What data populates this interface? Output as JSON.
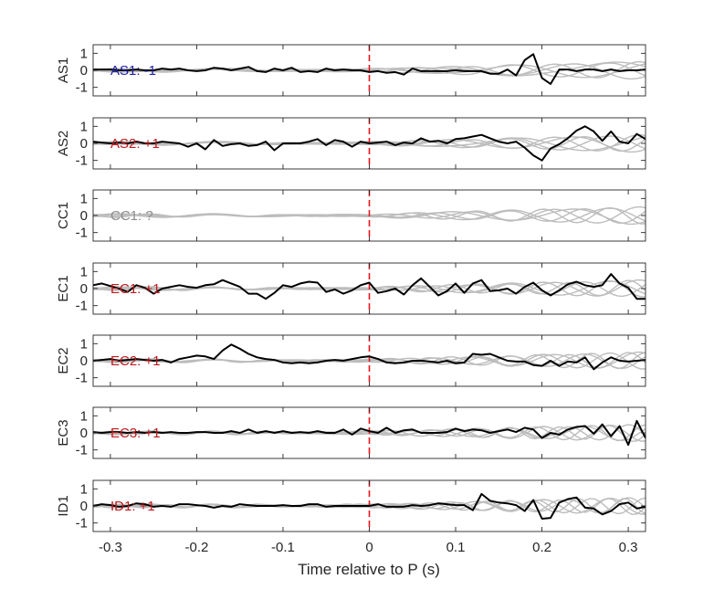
{
  "colors": {
    "axis": "#262626",
    "main_trace": "#000000",
    "grey_trace": "#bdbdbd",
    "p_marker": "#e8141a",
    "polarity_negative": "#1f1fa8",
    "polarity_positive": "#c0191d",
    "polarity_unknown": "#8c8c8c"
  },
  "chart_data": {
    "type": "line",
    "xlabel": "Time relative to P (s)",
    "xlim": [
      -0.32,
      0.32
    ],
    "xticks": [
      -0.3,
      -0.2,
      -0.1,
      0,
      0.1,
      0.2,
      0.3
    ],
    "xtick_labels": [
      "-0.3",
      "-0.2",
      "-0.1",
      "0",
      "0.1",
      "0.2",
      "0.3"
    ],
    "ylim": [
      -1.5,
      1.5
    ],
    "yticks": [
      -1,
      0,
      1
    ],
    "ytick_labels": [
      "-1",
      "0",
      "1"
    ],
    "p_arrival_x": 0,
    "time_step": 0.01,
    "panels": [
      {
        "ylabel": "AS1",
        "annotation": "AS1: -1",
        "polarity": "negative",
        "trace": [
          0.05,
          0.05,
          0.05,
          0,
          0,
          0.05,
          0,
          0,
          0.1,
          0.05,
          0.1,
          0,
          -0.05,
          0,
          0.15,
          0.1,
          0,
          0.1,
          0.2,
          -0.05,
          -0.1,
          0.1,
          0,
          0.15,
          -0.1,
          -0.05,
          -0.1,
          0.1,
          0,
          0.05,
          0,
          0,
          -0.1,
          -0.05,
          -0.15,
          -0.1,
          -0.25,
          0.1,
          -0.05,
          -0.05,
          -0.05,
          -0.05,
          0,
          -0.05,
          -0.05,
          -0.05,
          -0.2,
          -0.2,
          0.05,
          -0.3,
          0.6,
          0.95,
          -0.45,
          -0.8,
          0.05,
          0.05,
          -0.05,
          0.05,
          0.05,
          -0.05,
          0.05,
          -0.05,
          0,
          0,
          0.05,
          0.2,
          -0.1,
          -0.15,
          -0.05,
          0,
          0,
          -0.05,
          0.15,
          0.05,
          0,
          0,
          0,
          0.05,
          0.05,
          0,
          0,
          0.05,
          -0.1,
          -0.15,
          -0.05,
          0,
          0,
          0.1,
          0.05,
          -0.1,
          0.05,
          0,
          0.05,
          0.1,
          0.2,
          0.1,
          0.15,
          -0.05,
          0.15,
          0.25,
          0.2,
          0.1,
          -0.4
        ]
      },
      {
        "ylabel": "AS2",
        "annotation": "AS2: +1",
        "polarity": "positive",
        "trace": [
          0.1,
          0.05,
          0,
          0.05,
          0,
          0.1,
          0,
          0,
          0.1,
          0.05,
          0,
          -0.2,
          0,
          -0.35,
          0.2,
          -0.15,
          -0.05,
          0,
          -0.15,
          -0.1,
          0.1,
          -0.4,
          0,
          0,
          0,
          0.1,
          0.25,
          -0.1,
          0.2,
          0.1,
          -0.2,
          0.1,
          0,
          0.05,
          0.1,
          -0.1,
          0.05,
          0,
          0.3,
          0.1,
          0.15,
          0,
          0.25,
          0.3,
          0.4,
          0.5,
          0.3,
          0.1,
          0,
          0.1,
          -0.25,
          -0.7,
          -1.0,
          -0.3,
          -0.05,
          0.3,
          0.75,
          1.0,
          0.7,
          0.15,
          0.7,
          0.1,
          0,
          0.55,
          0.25,
          0.1,
          -0.05,
          -0.5,
          -0.6,
          -0.55,
          -0.05,
          -0.6,
          -0.5,
          -0.15,
          -0.05,
          0.05,
          0.05,
          0.55,
          0.5,
          0.2,
          0.1,
          0.05,
          -0.15,
          0,
          0.2,
          0.1,
          0.15,
          0.3,
          0.2,
          0.45,
          0.6,
          0.9,
          0.5,
          0.2,
          -0.1,
          0.35,
          0.1,
          0.3,
          0.15,
          0.1,
          -0.1,
          0.1,
          0.35
        ]
      },
      {
        "ylabel": "CC1",
        "annotation": "CC1: ?",
        "polarity": "unknown",
        "trace": []
      },
      {
        "ylabel": "EC1",
        "annotation": "EC1: +1",
        "polarity": "positive",
        "trace": [
          0.2,
          0.3,
          0.15,
          0,
          -0.2,
          0.2,
          0.05,
          -0.3,
          0,
          0.1,
          0.2,
          0.1,
          0.05,
          0.2,
          0.25,
          0.5,
          0.3,
          0.1,
          -0.3,
          -0.3,
          -0.6,
          -0.25,
          0.2,
          0.1,
          0.3,
          0.4,
          0.35,
          -0.2,
          -0.05,
          -0.3,
          -0.1,
          0.2,
          0.35,
          -0.25,
          -0.15,
          0,
          -0.35,
          0.2,
          0.6,
          0.1,
          -0.4,
          -0.15,
          0.3,
          -0.25,
          0.3,
          0.5,
          -0.15,
          -0.1,
          0,
          -0.3,
          0.1,
          0.35,
          -0.1,
          -0.4,
          -0.1,
          0.25,
          0.4,
          0.2,
          0.1,
          0.2,
          0.85,
          0.3,
          0.05,
          -0.6,
          -0.6,
          -0.35,
          -0.55,
          -0.4,
          0.75,
          0.2,
          -0.85,
          -0.95,
          0.05,
          0.55,
          0.35,
          0.55,
          -0.1,
          -0.1,
          0.8,
          0.15,
          0.9,
          0.05,
          0.1,
          -0.05,
          -0.1,
          0.05,
          -0.25,
          0.2,
          0.2,
          -0.05,
          0,
          0.25,
          0.1,
          0.45,
          0.2,
          -0.1,
          -0.05,
          0.35,
          0.5,
          -0.05,
          -0.35,
          -0.2,
          0.5,
          -0.1,
          -0.1,
          0.1,
          0,
          0.1,
          0.55,
          0.05,
          -0.05,
          0.3,
          0.1,
          -0.25,
          0.3,
          0.1,
          0.1
        ]
      },
      {
        "ylabel": "EC2",
        "annotation": "EC2: +1",
        "polarity": "positive",
        "trace": [
          0,
          0.05,
          0.1,
          0,
          0.05,
          0.1,
          0.05,
          0,
          0.05,
          -0.1,
          0.1,
          0.2,
          0.3,
          0.25,
          0.1,
          0.6,
          0.95,
          0.7,
          0.4,
          0.2,
          0.1,
          0.05,
          -0.1,
          -0.15,
          -0.1,
          -0.15,
          -0.1,
          0,
          0.05,
          0,
          0.1,
          0.2,
          0.25,
          0.1,
          -0.1,
          -0.15,
          -0.1,
          0,
          0,
          -0.05,
          -0.1,
          0,
          -0.15,
          -0.1,
          0.4,
          0.35,
          0.4,
          0.2,
          0,
          -0.05,
          -0.05,
          -0.25,
          -0.3,
          0,
          -0.3,
          -0.05,
          -0.1,
          0.2,
          -0.5,
          -0.1,
          0.2,
          0,
          -0.05,
          0,
          0.05,
          0.05,
          0,
          0,
          -0.05,
          0,
          0.2,
          -0.35,
          -0.05,
          0.05,
          0.5,
          0.3,
          -0.35,
          -0.5,
          0,
          0.2,
          0.55,
          1.0,
          0.8,
          0.6,
          0.3,
          0,
          -0.1,
          -0.3,
          -0.4,
          -0.4,
          -0.35,
          -0.35,
          -0.2,
          0.15,
          0.45,
          0.4,
          0.5,
          0.2,
          0.15,
          0,
          0.1,
          -0.25
        ]
      },
      {
        "ylabel": "EC3",
        "annotation": "EC3: +1",
        "polarity": "positive",
        "trace": [
          0.05,
          0,
          0.05,
          0.05,
          0,
          0.05,
          0,
          0.05,
          0,
          0.05,
          0,
          0,
          0.05,
          0.05,
          0,
          0,
          0.1,
          0,
          0.2,
          0,
          0.1,
          0,
          0.1,
          0,
          0.05,
          0,
          0.1,
          0,
          0,
          0.2,
          -0.1,
          0.25,
          0.1,
          0,
          0.3,
          0,
          0.15,
          0.2,
          0,
          0,
          0,
          0.05,
          0.25,
          0.1,
          0.2,
          0.15,
          0,
          0.1,
          0.2,
          0.05,
          0.3,
          0.2,
          -0.3,
          0,
          -0.1,
          0.2,
          0.35,
          0.4,
          -0.05,
          0.5,
          -0.2,
          0.4,
          -0.7,
          0.7,
          -0.3,
          0.8,
          -0.35,
          -0.45,
          -0.2,
          -0.25,
          0.6,
          1.0,
          0.2,
          0.1,
          0,
          0,
          -0.25,
          -0.2,
          0,
          0.5,
          1.1,
          0.5,
          -0.9,
          -0.35,
          0.35,
          0.35,
          0.55,
          0.7
        ]
      },
      {
        "ylabel": "ID1",
        "annotation": "ID1: +1",
        "polarity": "positive",
        "trace": [
          0,
          0.1,
          0.05,
          -0.05,
          0,
          0.15,
          0.1,
          -0.05,
          0,
          -0.05,
          0.1,
          0.1,
          0.05,
          0,
          -0.1,
          0,
          -0.05,
          0.1,
          0.05,
          0,
          0,
          0,
          0.05,
          0,
          0,
          0.1,
          0.1,
          -0.05,
          0,
          0,
          0,
          0,
          0,
          0.1,
          -0.05,
          -0.05,
          -0.05,
          0.05,
          0,
          0.05,
          0.15,
          0.1,
          0.05,
          0.05,
          -0.25,
          0.7,
          0.3,
          0.2,
          0.15,
          0.05,
          -0.3,
          0.35,
          -0.75,
          -0.7,
          0.2,
          0.4,
          0.5,
          -0.1,
          -0.15,
          -0.5,
          -0.3,
          0.1,
          0.2,
          -0.15,
          -0.05,
          -0.2,
          0.75,
          0.55,
          -0.65,
          -1.0,
          -0.3,
          -0.65,
          -0.95,
          0.3,
          0.7,
          0.55,
          0.75,
          0.4,
          0.2,
          0.1,
          0.05,
          -0.2,
          -0.3,
          0.2,
          0.1,
          -0.1,
          0,
          -0.05,
          0.05,
          -0.4,
          -0.3
        ]
      }
    ]
  }
}
